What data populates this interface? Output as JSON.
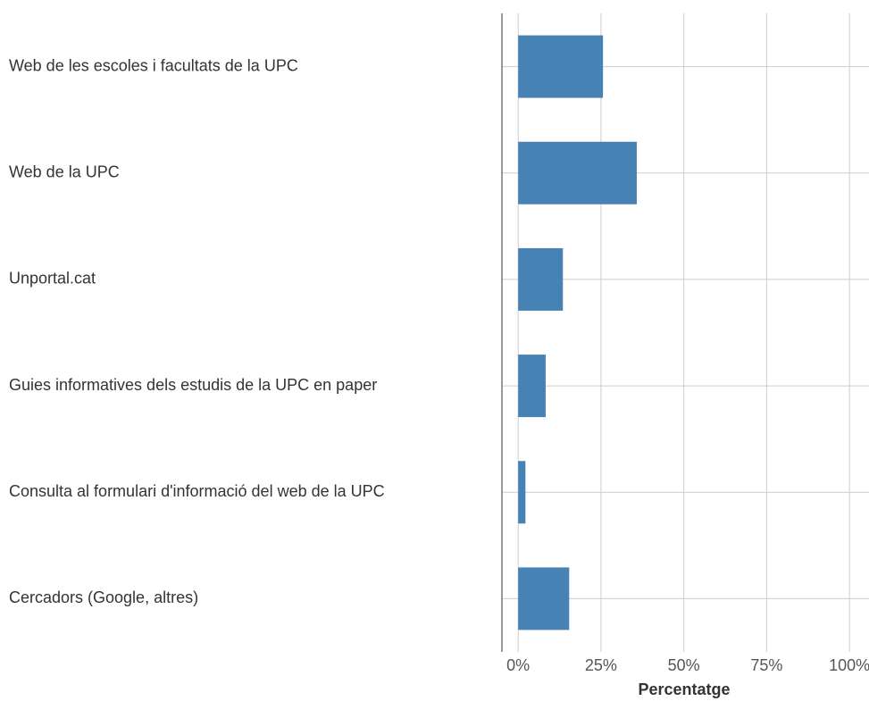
{
  "chart_data": {
    "type": "barh",
    "categories": [
      "Web de les escoles i facultats de la UPC",
      "Web de la UPC",
      "Unportal.cat",
      "Guies informatives dels estudis de la UPC en paper",
      "Consulta al formulari d'informació del web de la UPC",
      "Cercadors (Google, altres)"
    ],
    "values": [
      25.6,
      35.8,
      13.5,
      8.3,
      2.2,
      15.4
    ],
    "color": "#4682b4",
    "xlabel": "Percentatge",
    "xlim": [
      -4.9,
      105.9
    ],
    "xticks": [
      {
        "value": 0,
        "label": "0%"
      },
      {
        "value": 25,
        "label": "25%"
      },
      {
        "value": 50,
        "label": "50%"
      },
      {
        "value": 75,
        "label": "75%"
      },
      {
        "value": 100,
        "label": "100%"
      }
    ],
    "grid": true
  }
}
